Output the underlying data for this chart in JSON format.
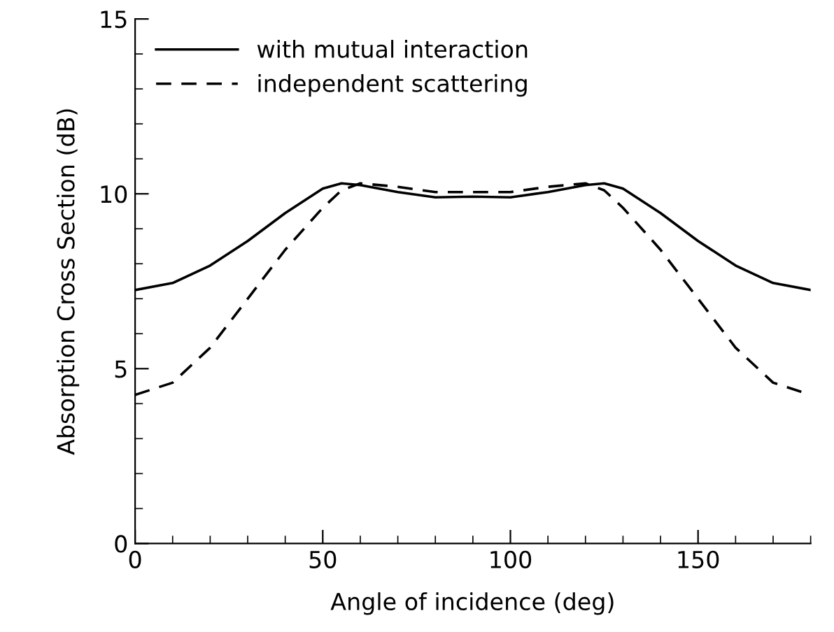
{
  "chart_data": {
    "type": "line",
    "xlabel": "Angle of incidence (deg)",
    "ylabel": "Absorption Cross Section (dB)",
    "xlim": [
      0,
      180
    ],
    "xticks": [
      0,
      50,
      100,
      150
    ],
    "ylim": [
      0,
      15
    ],
    "yticks": [
      0,
      5,
      10,
      15
    ],
    "grid": false,
    "legend": "top left",
    "series": [
      {
        "name": "with mutual interaction",
        "color": "#000000",
        "line_style": "solid",
        "x": [
          0,
          10,
          20,
          30,
          40,
          50,
          55,
          60,
          70,
          80,
          90,
          100,
          110,
          120,
          125,
          130,
          140,
          150,
          160,
          170,
          180
        ],
        "values": [
          7.25,
          7.45,
          7.95,
          8.65,
          9.45,
          10.15,
          10.3,
          10.25,
          10.05,
          9.9,
          9.92,
          9.9,
          10.05,
          10.25,
          10.3,
          10.15,
          9.45,
          8.65,
          7.95,
          7.45,
          7.25
        ]
      },
      {
        "name": "independent scattering",
        "color": "#000000",
        "line_style": "dashed",
        "x": [
          0,
          10,
          20,
          30,
          40,
          50,
          55,
          60,
          70,
          80,
          90,
          100,
          110,
          120,
          125,
          130,
          140,
          150,
          160,
          170,
          180
        ],
        "values": [
          4.25,
          4.6,
          5.6,
          7.0,
          8.4,
          9.6,
          10.1,
          10.3,
          10.2,
          10.05,
          10.05,
          10.05,
          10.2,
          10.3,
          10.1,
          9.6,
          8.4,
          7.0,
          5.6,
          4.6,
          4.25
        ]
      }
    ]
  }
}
